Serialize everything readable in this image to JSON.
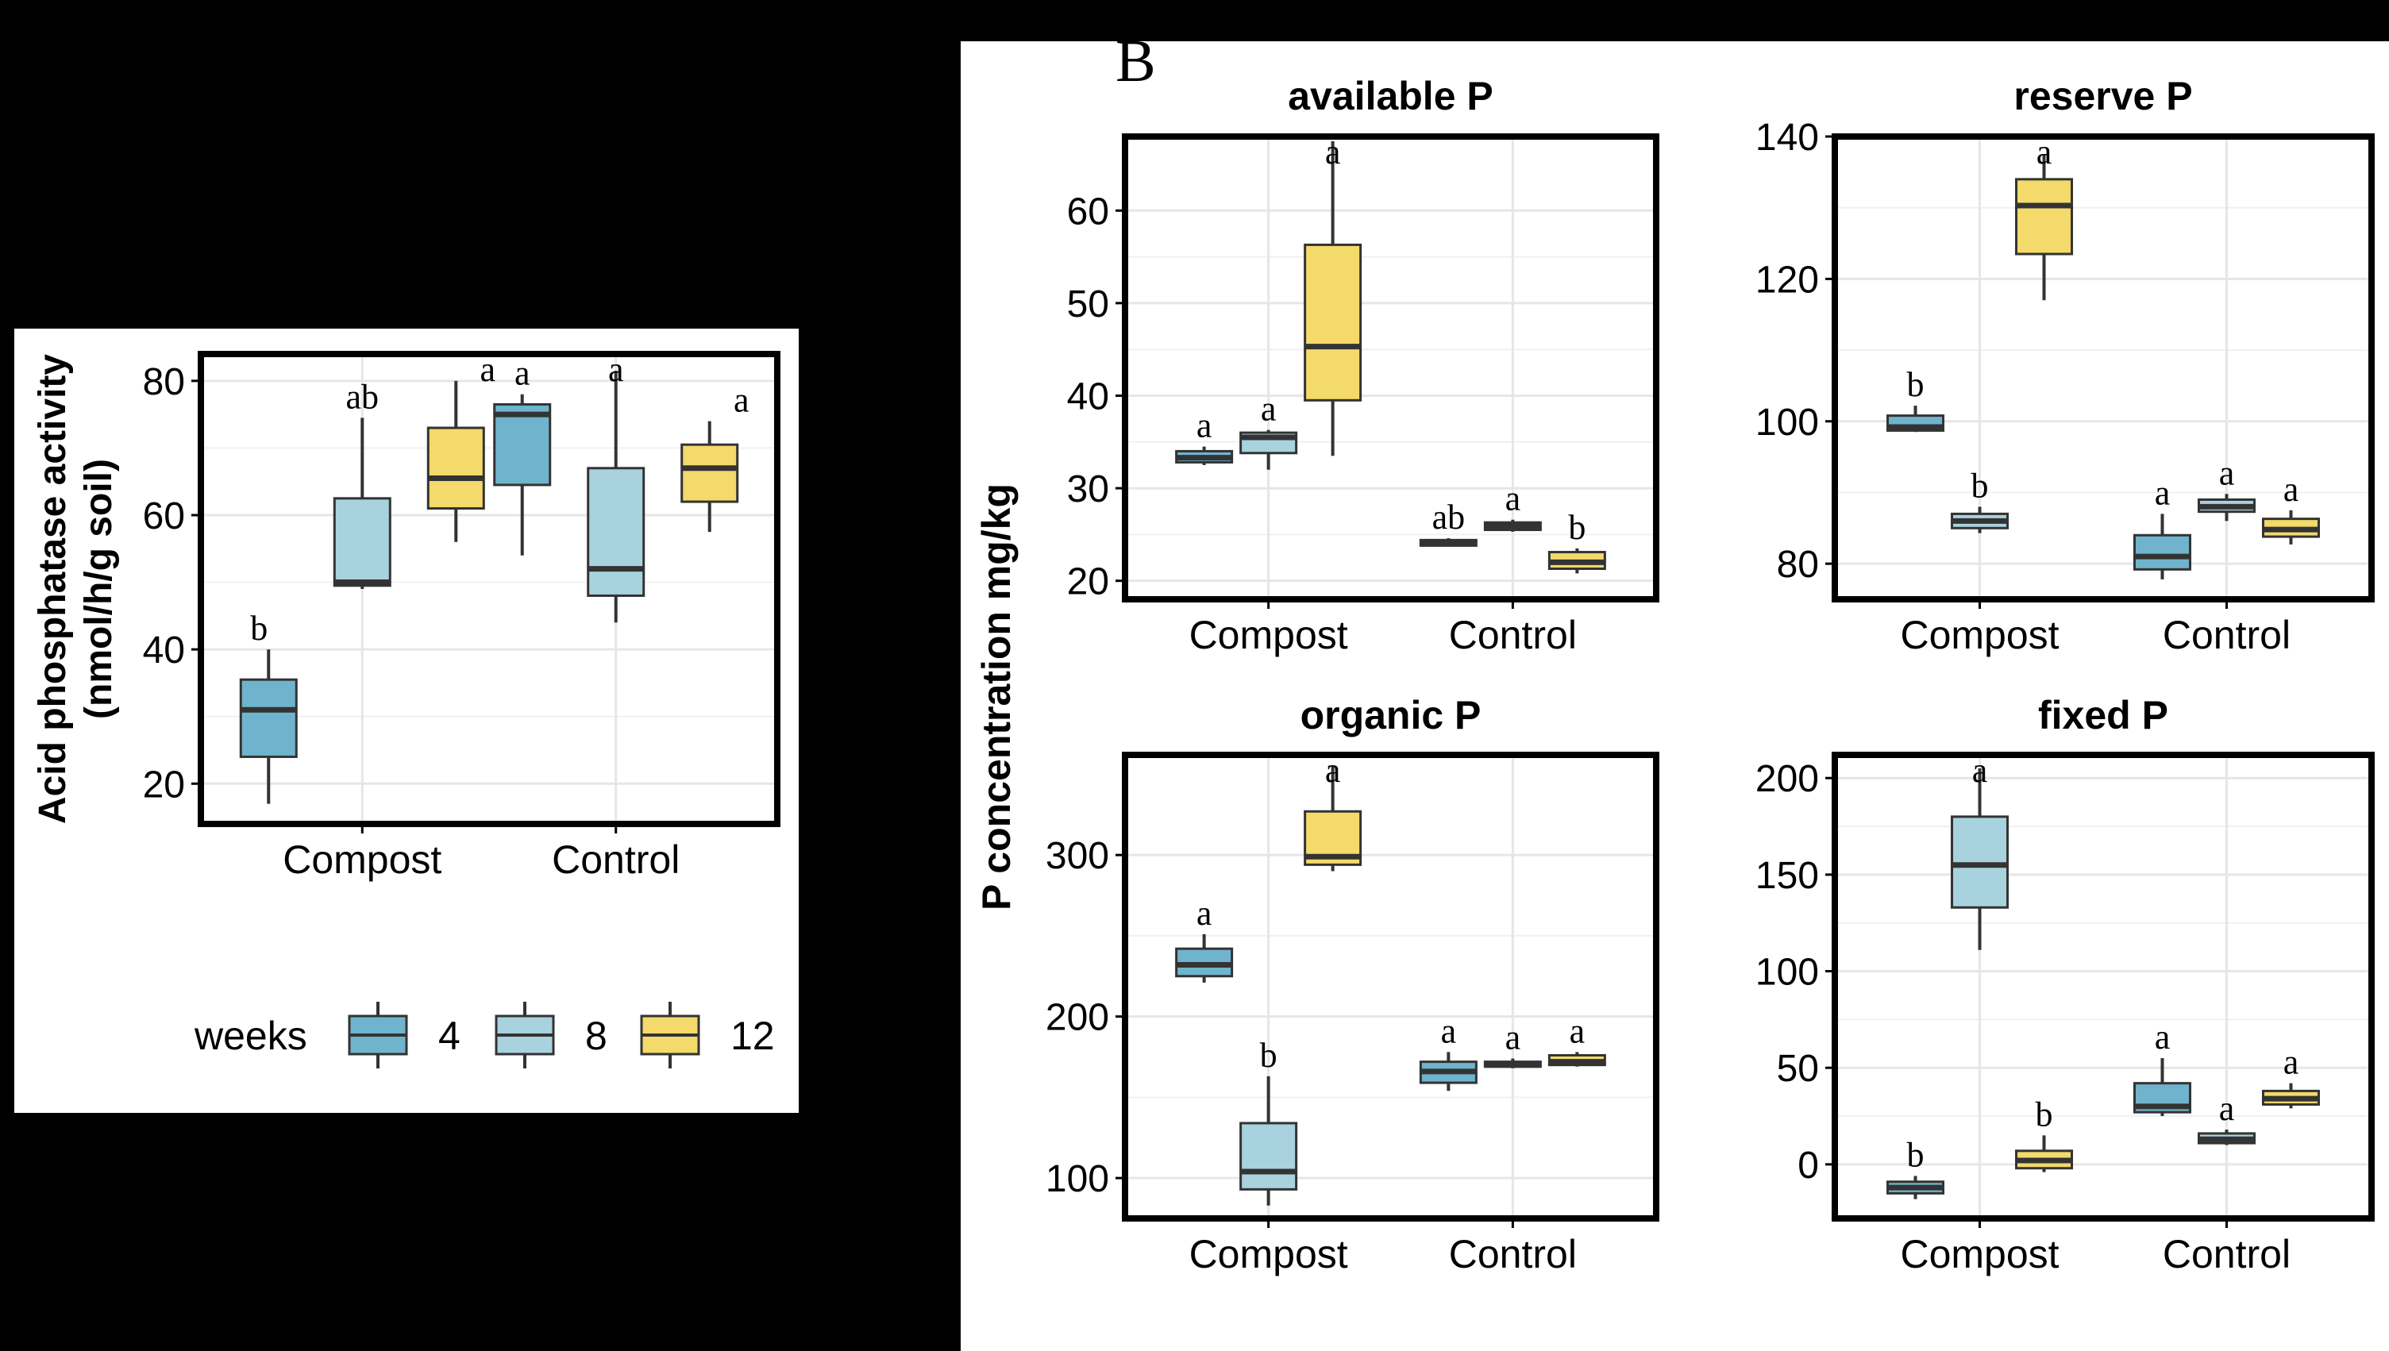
{
  "colors": {
    "w4": "#6fb4cc",
    "w8": "#a8d2de",
    "w12": "#f4d96b",
    "frame": "#000000",
    "grid": "#e6e6e6",
    "median": "#333333",
    "whisker": "#333333",
    "panel_bg": "#ffffff"
  },
  "panel_b_label": "B",
  "panel_b_ylabel": "P concentration mg/kg",
  "legend": {
    "title": "weeks",
    "items": [
      {
        "label": "4",
        "color_key": "w4"
      },
      {
        "label": "8",
        "color_key": "w8"
      },
      {
        "label": "12",
        "color_key": "w12"
      }
    ]
  },
  "chart_data": [
    {
      "id": "acid",
      "type": "box",
      "title": "",
      "ylabel_line1": "Acid phosphatase activity",
      "ylabel_line2": "(nmol/h/g soil)",
      "categories": [
        "Compost",
        "Control"
      ],
      "ylim": [
        14,
        84
      ],
      "yticks": [
        20,
        40,
        60,
        80
      ],
      "groups": [
        {
          "category": "Compost",
          "weeks": "4",
          "min": 17,
          "q1": 24,
          "median": 31,
          "q3": 35.5,
          "max": 40,
          "letter": "b"
        },
        {
          "category": "Compost",
          "weeks": "8",
          "min": 49,
          "q1": 49.5,
          "median": 50,
          "q3": 62.5,
          "max": 74.5,
          "letter": "ab"
        },
        {
          "category": "Compost",
          "weeks": "12",
          "min": 56,
          "q1": 61,
          "median": 65.5,
          "q3": 73,
          "max": 80,
          "letter": "a"
        },
        {
          "category": "Control",
          "weeks": "4",
          "min": 54,
          "q1": 64.5,
          "median": 75,
          "q3": 76.5,
          "max": 78,
          "letter": "a"
        },
        {
          "category": "Control",
          "weeks": "8",
          "min": 44,
          "q1": 48,
          "median": 52,
          "q3": 67,
          "max": 81.5,
          "letter": "a"
        },
        {
          "category": "Control",
          "weeks": "12",
          "min": 57.5,
          "q1": 62,
          "median": 67,
          "q3": 70.5,
          "max": 74,
          "letter": "a"
        }
      ]
    },
    {
      "id": "available",
      "type": "box",
      "title": "available P",
      "categories": [
        "Compost",
        "Control"
      ],
      "ylim": [
        18,
        68
      ],
      "yticks": [
        20,
        30,
        40,
        50,
        60
      ],
      "groups": [
        {
          "category": "Compost",
          "weeks": "4",
          "min": 32.5,
          "q1": 32.8,
          "median": 33.3,
          "q3": 34,
          "max": 34.5,
          "letter": "a"
        },
        {
          "category": "Compost",
          "weeks": "8",
          "min": 32,
          "q1": 33.8,
          "median": 35.5,
          "q3": 36,
          "max": 36.3,
          "letter": "a"
        },
        {
          "category": "Compost",
          "weeks": "12",
          "min": 33.5,
          "q1": 39.5,
          "median": 45.3,
          "q3": 56.3,
          "max": 67.5,
          "letter": "a"
        },
        {
          "category": "Control",
          "weeks": "4",
          "min": 23.7,
          "q1": 23.8,
          "median": 24.1,
          "q3": 24.4,
          "max": 24.6,
          "letter": "ab"
        },
        {
          "category": "Control",
          "weeks": "8",
          "min": 25.3,
          "q1": 25.5,
          "median": 25.9,
          "q3": 26.3,
          "max": 26.6,
          "letter": "a"
        },
        {
          "category": "Control",
          "weeks": "12",
          "min": 20.8,
          "q1": 21.3,
          "median": 22,
          "q3": 23.1,
          "max": 23.5,
          "letter": "b"
        }
      ]
    },
    {
      "id": "reserve",
      "type": "box",
      "title": "reserve P",
      "categories": [
        "Compost",
        "Control"
      ],
      "ylim": [
        75,
        140
      ],
      "yticks": [
        80,
        100,
        120,
        140
      ],
      "groups": [
        {
          "category": "Compost",
          "weeks": "4",
          "min": 98.5,
          "q1": 98.7,
          "median": 99.2,
          "q3": 100.8,
          "max": 102.2,
          "letter": "b"
        },
        {
          "category": "Compost",
          "weeks": "8",
          "min": 84.3,
          "q1": 85,
          "median": 86,
          "q3": 87,
          "max": 88,
          "letter": "b"
        },
        {
          "category": "Compost",
          "weeks": "12",
          "min": 117,
          "q1": 123.5,
          "median": 130.3,
          "q3": 134,
          "max": 137.5,
          "letter": "a"
        },
        {
          "category": "Control",
          "weeks": "4",
          "min": 77.8,
          "q1": 79.2,
          "median": 81,
          "q3": 84,
          "max": 87,
          "letter": "a"
        },
        {
          "category": "Control",
          "weeks": "8",
          "min": 86,
          "q1": 87.3,
          "median": 88,
          "q3": 89,
          "max": 89.8,
          "letter": "a"
        },
        {
          "category": "Control",
          "weeks": "12",
          "min": 82.7,
          "q1": 83.8,
          "median": 84.8,
          "q3": 86.3,
          "max": 87.5,
          "letter": "a"
        }
      ]
    },
    {
      "id": "organic",
      "type": "box",
      "title": "organic P",
      "categories": [
        "Compost",
        "Control"
      ],
      "ylim": [
        75,
        362
      ],
      "yticks": [
        100,
        200,
        300
      ],
      "groups": [
        {
          "category": "Compost",
          "weeks": "4",
          "min": 221,
          "q1": 225,
          "median": 232,
          "q3": 242,
          "max": 251,
          "letter": "a"
        },
        {
          "category": "Compost",
          "weeks": "8",
          "min": 83,
          "q1": 93,
          "median": 104,
          "q3": 134,
          "max": 163,
          "letter": "b"
        },
        {
          "category": "Compost",
          "weeks": "12",
          "min": 290,
          "q1": 294,
          "median": 299,
          "q3": 327,
          "max": 355,
          "letter": "a"
        },
        {
          "category": "Control",
          "weeks": "4",
          "min": 154,
          "q1": 159,
          "median": 166,
          "q3": 172,
          "max": 178,
          "letter": "a"
        },
        {
          "category": "Control",
          "weeks": "8",
          "min": 168,
          "q1": 169,
          "median": 170,
          "q3": 172,
          "max": 174,
          "letter": "a"
        },
        {
          "category": "Control",
          "weeks": "12",
          "min": 169,
          "q1": 170,
          "median": 172,
          "q3": 176,
          "max": 178,
          "letter": "a"
        }
      ]
    },
    {
      "id": "fixed",
      "type": "box",
      "title": "fixed P",
      "categories": [
        "Compost",
        "Control"
      ],
      "ylim": [
        -28,
        212
      ],
      "yticks": [
        0,
        50,
        100,
        150,
        200
      ],
      "groups": [
        {
          "category": "Compost",
          "weeks": "4",
          "min": -18,
          "q1": -15,
          "median": -12,
          "q3": -9,
          "max": -6,
          "letter": "b"
        },
        {
          "category": "Compost",
          "weeks": "8",
          "min": 111,
          "q1": 133,
          "median": 155,
          "q3": 180,
          "max": 205,
          "letter": "a"
        },
        {
          "category": "Compost",
          "weeks": "12",
          "min": -4,
          "q1": -2,
          "median": 2,
          "q3": 7,
          "max": 15,
          "letter": "b"
        },
        {
          "category": "Control",
          "weeks": "4",
          "min": 25,
          "q1": 27,
          "median": 30,
          "q3": 42,
          "max": 55,
          "letter": "a"
        },
        {
          "category": "Control",
          "weeks": "8",
          "min": 10,
          "q1": 11,
          "median": 13,
          "q3": 16,
          "max": 18,
          "letter": "a"
        },
        {
          "category": "Control",
          "weeks": "12",
          "min": 29,
          "q1": 31,
          "median": 34,
          "q3": 38,
          "max": 42,
          "letter": "a"
        }
      ]
    }
  ]
}
